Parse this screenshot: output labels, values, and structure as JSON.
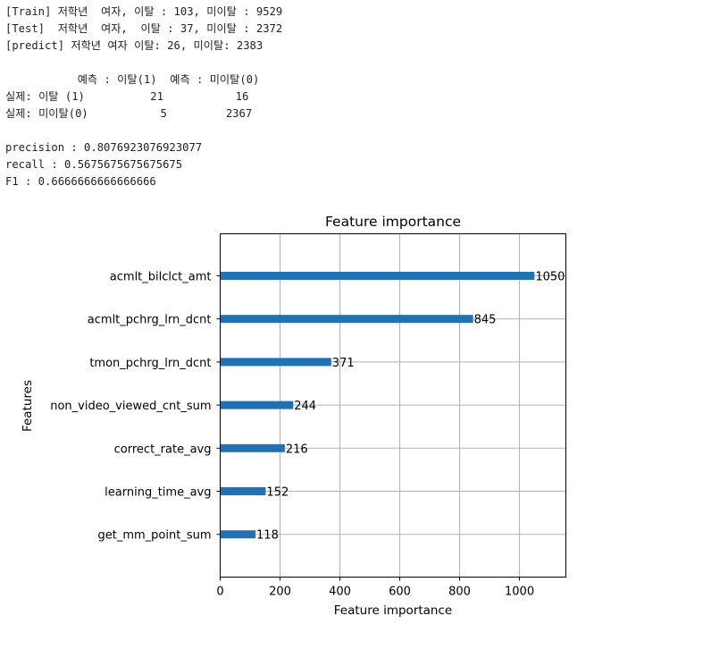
{
  "console": {
    "lines": [
      "[Train] 저학년  여자, 이탈 : 103, 미이탈 : 9529",
      "[Test]  저학년  여자,  이탈 : 37, 미이탈 : 2372",
      "[predict] 저학년 여자 이탈: 26, 미이탈: 2383",
      "",
      "           예측 : 이탈(1)  예측 : 미이탈(0)",
      "실제: 이탈 (1)          21           16",
      "실제: 미이탈(0)           5         2367",
      "",
      "precision : 0.8076923076923077",
      "recall : 0.5675675675675675",
      "F1 : 0.6666666666666666"
    ]
  },
  "chart_data": {
    "type": "bar",
    "orientation": "horizontal",
    "title": "Feature importance",
    "xlabel": "Feature importance",
    "ylabel": "Features",
    "categories": [
      "acmlt_bilclct_amt",
      "acmlt_pchrg_lrn_dcnt",
      "tmon_pchrg_lrn_dcnt",
      "non_video_viewed_cnt_sum",
      "correct_rate_avg",
      "learning_time_avg",
      "get_mm_point_sum"
    ],
    "values": [
      1050,
      845,
      371,
      244,
      216,
      152,
      118
    ],
    "data_labels": [
      "1050",
      "845",
      "371",
      "244",
      "216",
      "152",
      "118"
    ],
    "xticks": [
      "0",
      "200",
      "400",
      "600",
      "800",
      "1000"
    ],
    "xlim": [
      0,
      1155
    ],
    "grid": true,
    "bar_color": "#2271b2",
    "grid_color": "#b0b0b0"
  }
}
